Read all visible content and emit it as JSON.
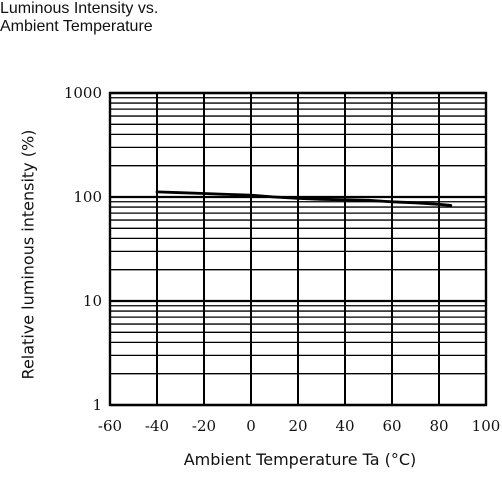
{
  "chart_data": {
    "type": "line",
    "title_lines": [
      "Luminous Intensity vs.",
      "Ambient Temperature"
    ],
    "xlabel": "Ambient Temperature Ta (°C)",
    "ylabel": "Relative luminous intensity   (%)",
    "xlim": [
      -60,
      100
    ],
    "ylim": [
      1,
      1000
    ],
    "yscale": "log",
    "grid": true,
    "x_ticks": [
      -60,
      -40,
      -20,
      0,
      20,
      40,
      60,
      80,
      100
    ],
    "x_tick_labels": [
      "-60",
      "-40",
      "-20",
      "0",
      "20",
      "40",
      "60",
      "80",
      "100"
    ],
    "y_ticks": [
      1,
      10,
      100,
      1000
    ],
    "y_tick_labels": [
      "1",
      "10",
      "100",
      "1000"
    ],
    "series": [
      {
        "x": [
          -40,
          -30,
          -20,
          -10,
          0,
          10,
          20,
          30,
          40,
          50,
          60,
          70,
          80,
          85
        ],
        "y": [
          112,
          110,
          108,
          106,
          104,
          100,
          97,
          95,
          94,
          93,
          90,
          88,
          85,
          83
        ],
        "color": "#000000"
      }
    ]
  }
}
